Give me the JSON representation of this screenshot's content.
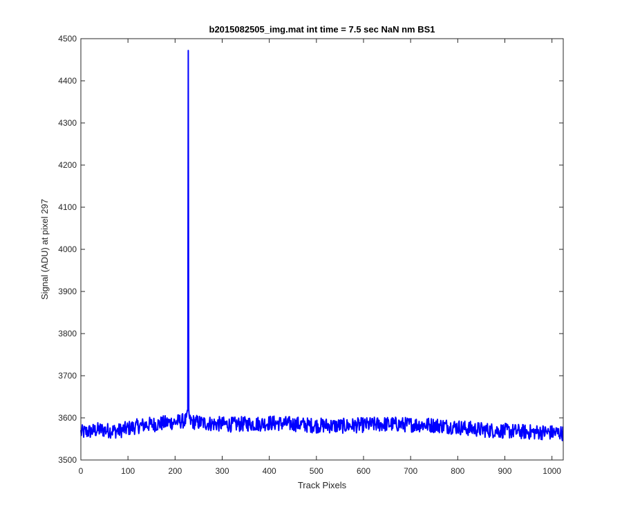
{
  "chart_data": {
    "type": "line",
    "title": "b2015082505_img.mat int time = 7.5 sec  NaN nm BS1",
    "xlabel": "Track Pixels",
    "ylabel": "Signal (ADU) at pixel 297",
    "xlim": [
      0,
      1024
    ],
    "ylim": [
      3500,
      4500
    ],
    "x_ticks": [
      0,
      100,
      200,
      300,
      400,
      500,
      600,
      700,
      800,
      900,
      1000
    ],
    "y_ticks": [
      3500,
      3600,
      3700,
      3800,
      3900,
      4000,
      4100,
      4200,
      4300,
      4400,
      4500
    ],
    "grid": false,
    "series": [
      {
        "color": "#0000ff",
        "x": [
          0,
          20,
          40,
          60,
          80,
          100,
          120,
          140,
          160,
          180,
          200,
          210,
          220,
          225,
          227,
          228,
          229,
          231,
          240,
          260,
          280,
          300,
          320,
          340,
          360,
          380,
          400,
          420,
          440,
          460,
          480,
          500,
          520,
          540,
          560,
          580,
          600,
          620,
          640,
          660,
          680,
          700,
          720,
          740,
          760,
          780,
          800,
          820,
          840,
          860,
          880,
          900,
          920,
          940,
          960,
          980,
          1000,
          1023
        ],
        "y": [
          3565,
          3568,
          3572,
          3570,
          3569,
          3575,
          3580,
          3584,
          3585,
          3588,
          3590,
          3592,
          3593,
          3594,
          3620,
          4472,
          3620,
          3592,
          3590,
          3588,
          3586,
          3585,
          3584,
          3585,
          3586,
          3586,
          3588,
          3587,
          3586,
          3585,
          3583,
          3582,
          3582,
          3581,
          3581,
          3582,
          3583,
          3584,
          3585,
          3585,
          3584,
          3584,
          3584,
          3583,
          3582,
          3580,
          3578,
          3575,
          3573,
          3571,
          3570,
          3569,
          3568,
          3567,
          3566,
          3566,
          3565,
          3564
        ],
        "noise_amplitude": 18
      }
    ]
  }
}
